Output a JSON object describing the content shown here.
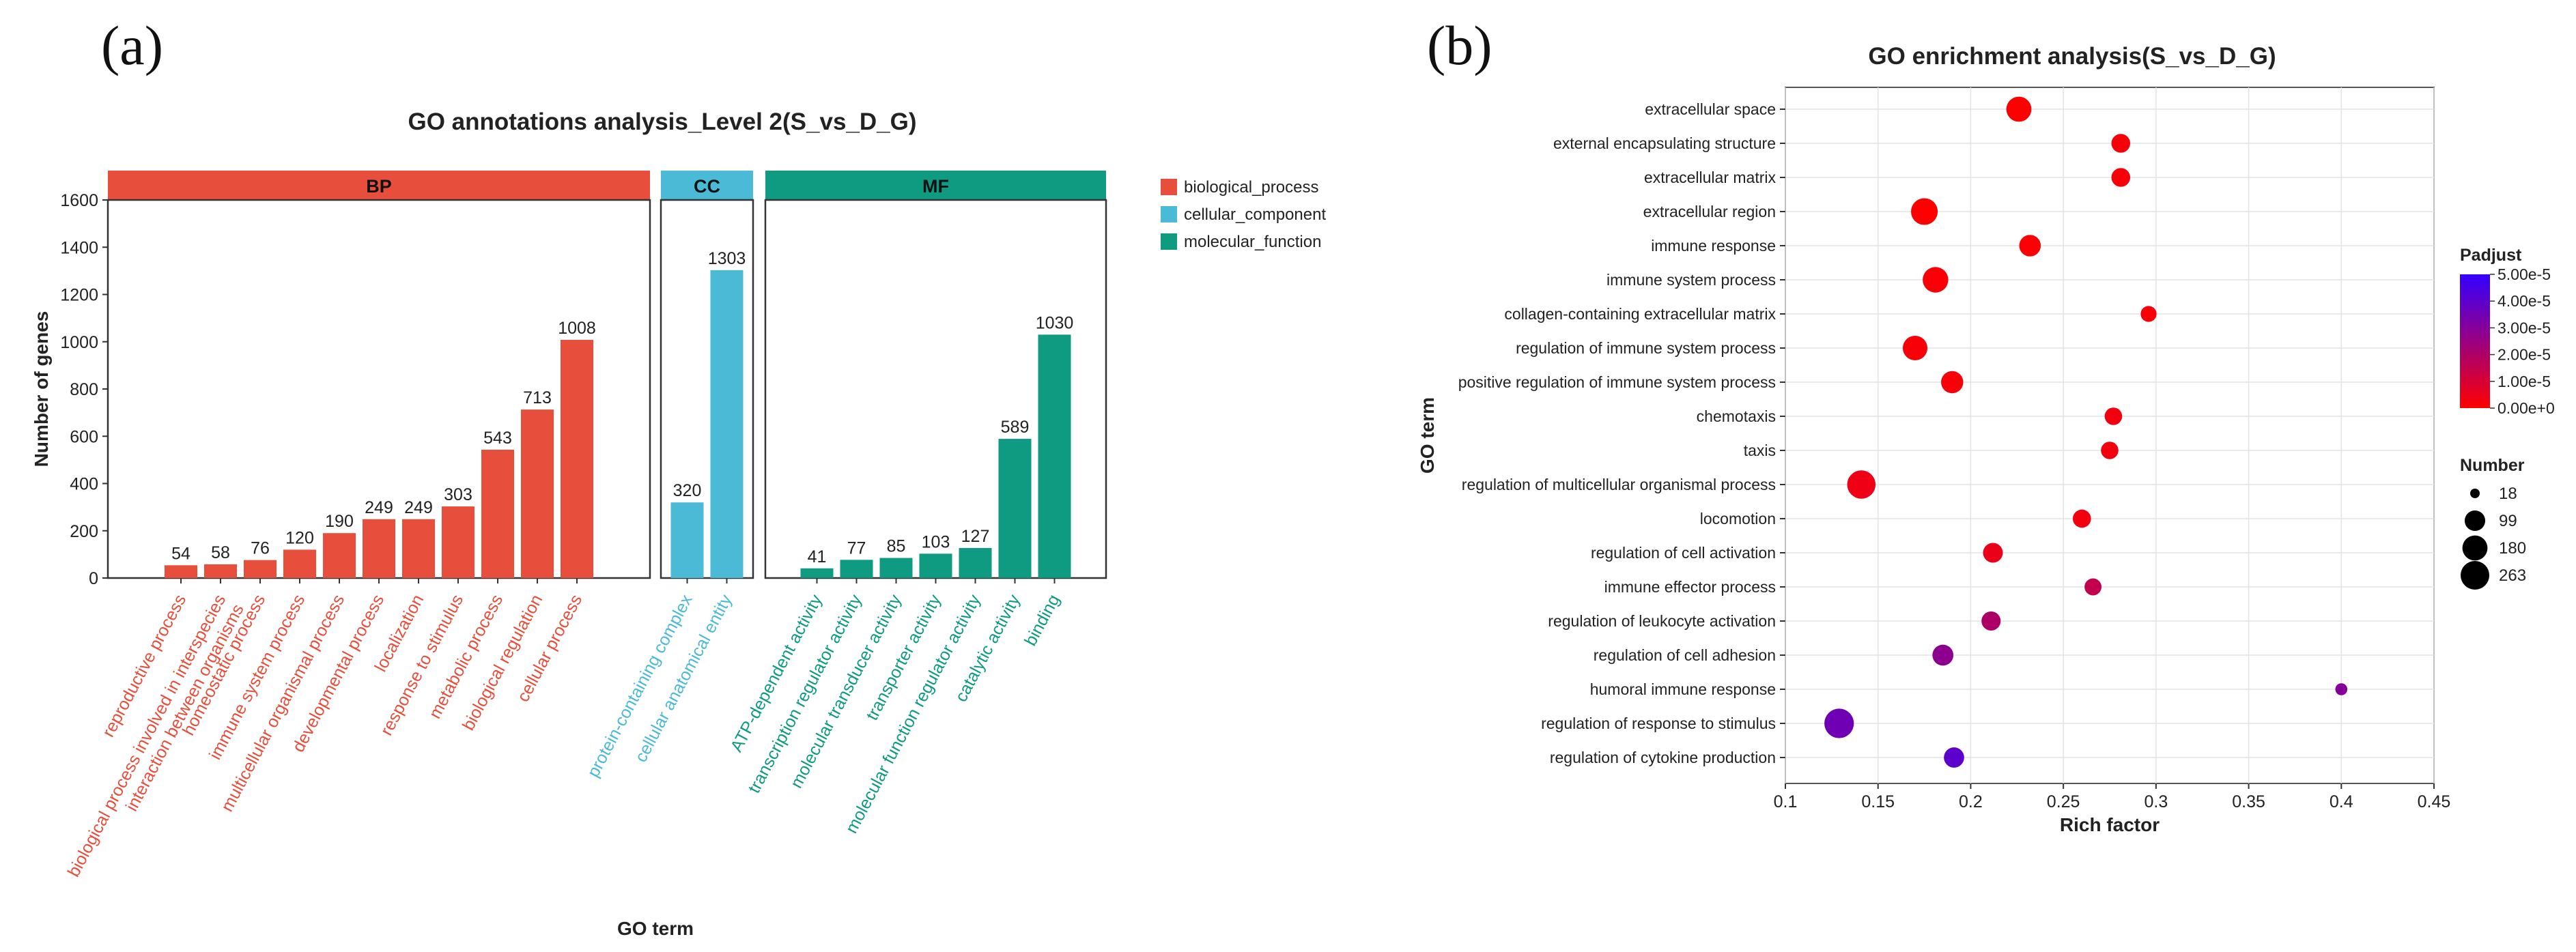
{
  "panel_labels": [
    "(a)",
    "(b)"
  ],
  "chart_data": [
    {
      "type": "bar",
      "title": "GO annotations analysis_Level 2(S_vs_D_G)",
      "xlabel": "GO term",
      "ylabel": "Number of genes",
      "ylim": [
        0,
        1600
      ],
      "yticks": [
        0,
        200,
        400,
        600,
        800,
        1000,
        1200,
        1400,
        1600
      ],
      "grid": false,
      "legend_position": "right",
      "legend": [
        {
          "label": "biological_process",
          "color": "#e84e3c"
        },
        {
          "label": "cellular_component",
          "color": "#4bbad7"
        },
        {
          "label": "molecular_function",
          "color": "#0f9a82"
        }
      ],
      "facets": [
        {
          "name": "BP",
          "color": "#e84e3c",
          "categories": [
            "reproductive process",
            "biological process involved in interspecies interaction between organisms",
            "homeostatic process",
            "immune system process",
            "multicellular organismal process",
            "developmental process",
            "localization",
            "response to stimulus",
            "metabolic process",
            "biological regulation",
            "cellular process"
          ],
          "category_lines": [
            [
              "reproductive process"
            ],
            [
              "biological process involved in interspecies",
              "interaction between organisms"
            ],
            [
              "homeostatic process"
            ],
            [
              "immune system process"
            ],
            [
              "multicellular organismal process"
            ],
            [
              "developmental process"
            ],
            [
              "localization"
            ],
            [
              "response to stimulus"
            ],
            [
              "metabolic process"
            ],
            [
              "biological regulation"
            ],
            [
              "cellular process"
            ]
          ],
          "values": [
            54,
            58,
            76,
            120,
            190,
            249,
            249,
            303,
            543,
            713,
            1008
          ]
        },
        {
          "name": "CC",
          "color": "#4bbad7",
          "categories": [
            "protein-containing complex",
            "cellular anatomical entity"
          ],
          "category_lines": [
            [
              "protein-containing complex"
            ],
            [
              "cellular anatomical entity"
            ]
          ],
          "values": [
            320,
            1303
          ]
        },
        {
          "name": "MF",
          "color": "#0f9a82",
          "categories": [
            "ATP-dependent activity",
            "transcription regulator activity",
            "molecular transducer activity",
            "transporter activity",
            "molecular function regulator activity",
            "catalytic activity",
            "binding"
          ],
          "category_lines": [
            [
              "ATP-dependent activity"
            ],
            [
              "transcription regulator activity"
            ],
            [
              "molecular transducer activity"
            ],
            [
              "transporter activity"
            ],
            [
              "molecular function regulator activity"
            ],
            [
              "catalytic activity"
            ],
            [
              "binding"
            ]
          ],
          "values": [
            41,
            77,
            85,
            103,
            127,
            589,
            1030
          ]
        }
      ]
    },
    {
      "type": "scatter",
      "title": "GO enrichment analysis(S_vs_D_G)",
      "xlabel": "Rich factor",
      "ylabel": "GO term",
      "xlim": [
        0.1,
        0.45
      ],
      "xticks": [
        0.1,
        0.15,
        0.2,
        0.25,
        0.3,
        0.35,
        0.4,
        0.45
      ],
      "grid": true,
      "color_legend": {
        "title": "Padjust",
        "min": 0,
        "max": 5e-05,
        "low_color": "#ff0000",
        "high_color": "#3300ff",
        "tick_values": [
          5e-05,
          4e-05,
          3e-05,
          2e-05,
          1e-05,
          0
        ],
        "tick_labels": [
          "5.00e-5",
          "4.00e-5",
          "3.00e-5",
          "2.00e-5",
          "1.00e-5",
          "0.00e+0"
        ]
      },
      "size_legend": {
        "title": "Number",
        "values": [
          18,
          99,
          180,
          263
        ],
        "labels": [
          "18",
          "99",
          "180",
          "263"
        ]
      },
      "points": [
        {
          "term": "extracellular space",
          "x": 0.226,
          "number": 180,
          "padjust": 1e-07
        },
        {
          "term": "external encapsulating structure",
          "x": 0.281,
          "number": 75,
          "padjust": 1.5e-06
        },
        {
          "term": "extracellular matrix",
          "x": 0.281,
          "number": 75,
          "padjust": 1.5e-06
        },
        {
          "term": "extracellular region",
          "x": 0.175,
          "number": 215,
          "padjust": 1e-07
        },
        {
          "term": "immune response",
          "x": 0.232,
          "number": 115,
          "padjust": 1e-06
        },
        {
          "term": "immune system process",
          "x": 0.181,
          "number": 190,
          "padjust": 1.2e-06
        },
        {
          "term": "collagen-containing extracellular matrix",
          "x": 0.296,
          "number": 45,
          "padjust": 1.5e-06
        },
        {
          "term": "regulation of immune system process",
          "x": 0.17,
          "number": 170,
          "padjust": 1.5e-06
        },
        {
          "term": "positive regulation of immune system process",
          "x": 0.19,
          "number": 125,
          "padjust": 2e-06
        },
        {
          "term": "chemotaxis",
          "x": 0.277,
          "number": 60,
          "padjust": 3e-06
        },
        {
          "term": "taxis",
          "x": 0.275,
          "number": 60,
          "padjust": 3e-06
        },
        {
          "term": "regulation of multicellular organismal process",
          "x": 0.141,
          "number": 255,
          "padjust": 4e-06
        },
        {
          "term": "locomotion",
          "x": 0.26,
          "number": 68,
          "padjust": 3e-06
        },
        {
          "term": "regulation of cell activation",
          "x": 0.212,
          "number": 88,
          "padjust": 5e-06
        },
        {
          "term": "immune effector process",
          "x": 0.266,
          "number": 55,
          "padjust": 1.5e-05
        },
        {
          "term": "regulation of leukocyte activation",
          "x": 0.211,
          "number": 80,
          "padjust": 2e-05
        },
        {
          "term": "regulation of cell adhesion",
          "x": 0.185,
          "number": 105,
          "padjust": 2.8e-05
        },
        {
          "term": "humoral immune response",
          "x": 0.4,
          "number": 22,
          "padjust": 3e-05
        },
        {
          "term": "regulation of response to stimulus",
          "x": 0.129,
          "number": 285,
          "padjust": 3.5e-05
        },
        {
          "term": "regulation of cytokine production",
          "x": 0.191,
          "number": 95,
          "padjust": 4e-05
        }
      ]
    }
  ]
}
